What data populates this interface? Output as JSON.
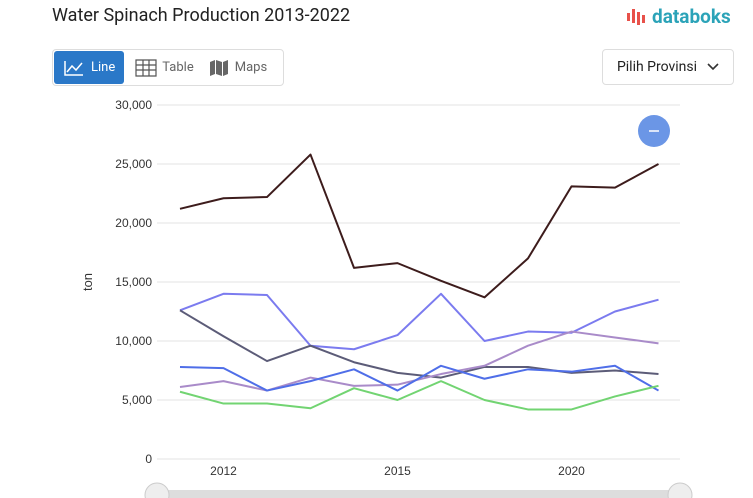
{
  "ui": {
    "logo": "databoks",
    "tabs": [
      "Line",
      "Table",
      "Maps"
    ],
    "dropdown": "Pilih Provinsi"
  },
  "chart_data": {
    "type": "line",
    "title": "Water Spinach Production 2013-2022",
    "ylabel": "ton",
    "categories": [
      null,
      "2012",
      null,
      null,
      null,
      "2015",
      null,
      null,
      null,
      "2020",
      null,
      null
    ],
    "series": [
      {
        "color": "#3d1c1c",
        "values": [
          21200,
          22100,
          22200,
          25800,
          16200,
          16600,
          15100,
          13700,
          17000,
          23100,
          23000,
          25000
        ]
      },
      {
        "color": "#7b7bef",
        "values": [
          12600,
          14000,
          13900,
          9600,
          9300,
          10500,
          14000,
          10000,
          10800,
          10700,
          12500,
          13500
        ]
      },
      {
        "color": "#5c5c78",
        "values": [
          12600,
          10400,
          8300,
          9600,
          8200,
          7300,
          6900,
          7800,
          7800,
          7300,
          7500,
          7200
        ]
      },
      {
        "color": "#a98bc9",
        "values": [
          6100,
          6600,
          5800,
          6900,
          6200,
          6300,
          7200,
          7900,
          9600,
          10800,
          10300,
          9800
        ]
      },
      {
        "color": "#4f6ee8",
        "values": [
          7800,
          7700,
          5800,
          6600,
          7600,
          5800,
          7900,
          6800,
          7600,
          7400,
          7900,
          5800
        ]
      },
      {
        "color": "#72d472",
        "values": [
          5700,
          4700,
          4700,
          4300,
          6000,
          5000,
          6600,
          5000,
          4200,
          4200,
          5300,
          6200
        ]
      }
    ],
    "ylim": [
      0,
      30000
    ],
    "yticks": [
      0,
      {
        "value": 5000,
        "label": "5,000"
      },
      {
        "value": 10000,
        "label": "10,000"
      },
      {
        "value": 15000,
        "label": "15,000"
      },
      {
        "value": 20000,
        "label": "20,000"
      },
      {
        "value": 25000,
        "label": "25,000"
      },
      {
        "value": 30000,
        "label": "30,000"
      }
    ],
    "grid": true
  }
}
